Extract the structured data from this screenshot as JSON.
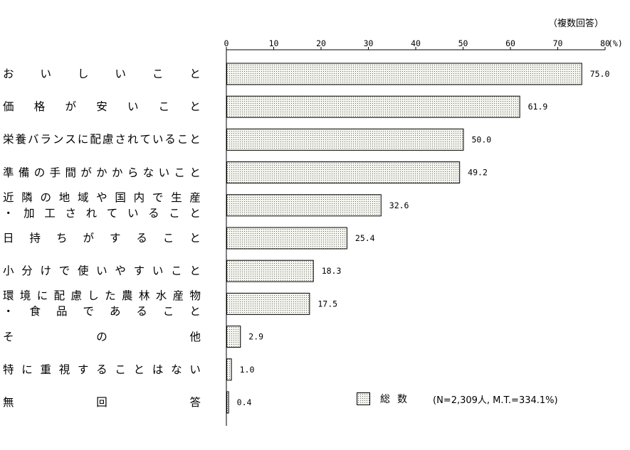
{
  "chart_data": {
    "type": "bar",
    "orientation": "horizontal",
    "note": "（複数回答）",
    "unit": "(%)",
    "xlim": [
      0,
      80
    ],
    "ticks": [
      0,
      10,
      20,
      30,
      40,
      50,
      60,
      70,
      80
    ],
    "categories": [
      [
        "お　い　し　い　こ　と"
      ],
      [
        "価　格　が　安　い　こ　と"
      ],
      [
        "栄養バランスに配慮されていること"
      ],
      [
        "準備の手間がかからないこと"
      ],
      [
        "近隣の地域や国内で生産",
        "・加工されていること"
      ],
      [
        "日　持　ち　が　す　る　こ　と"
      ],
      [
        "小分けで使いやすいこと"
      ],
      [
        "環境に配慮した農林水産物",
        "・食品であること"
      ],
      [
        "そ　の　他"
      ],
      [
        "特に重視することはない"
      ],
      [
        "無　回　答"
      ]
    ],
    "series": [
      {
        "name": "総数",
        "values": [
          75.0,
          61.9,
          50.0,
          49.2,
          32.6,
          25.4,
          18.3,
          17.5,
          2.9,
          1.0,
          0.4
        ],
        "value_labels": [
          "75.0",
          "61.9",
          "50.0",
          "49.2",
          "32.6",
          "25.4",
          "18.3",
          "17.5",
          "2.9",
          "1.0",
          "0.4"
        ]
      }
    ],
    "legend": {
      "placement": "bottom-right",
      "sample": "(N=2,309人, M.T.=334.1%)"
    },
    "colors": {
      "bar_fill": "#f4f4ee",
      "bar_dot": "#6a6a6a",
      "stroke": "#000000"
    }
  }
}
